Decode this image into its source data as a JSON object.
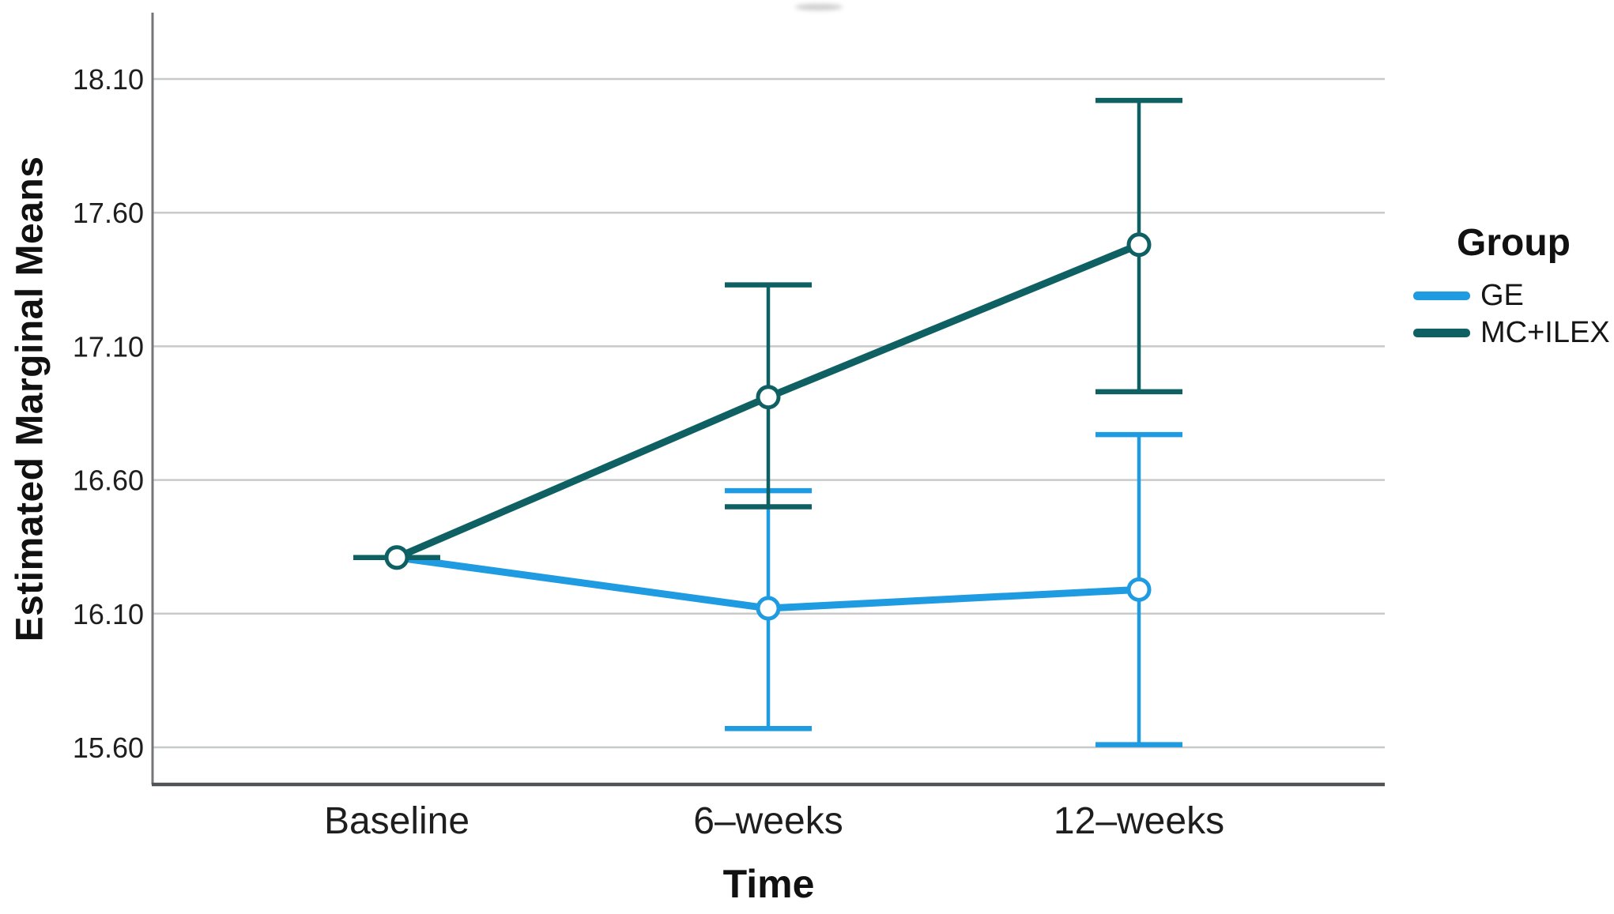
{
  "chart_data": {
    "type": "line",
    "title": "",
    "ylabel": "Estimated Marginal Means",
    "xlabel": "Time",
    "categories": [
      "Baseline",
      "6–weeks",
      "12–weeks"
    ],
    "yticks": [
      18.1,
      17.6,
      17.1,
      16.6,
      16.1,
      15.6
    ],
    "ylim": [
      15.46,
      18.35
    ],
    "grid": true,
    "marker": "open-circle",
    "legend": {
      "title": "Group",
      "position": "right"
    },
    "series": [
      {
        "name": "GE",
        "color": "#1E9BE1",
        "values": [
          16.31,
          16.12,
          16.19
        ],
        "ci_low": [
          16.31,
          15.67,
          15.61
        ],
        "ci_high": [
          16.31,
          16.56,
          16.77
        ]
      },
      {
        "name": "MC+ILEX",
        "color": "#0E6063",
        "values": [
          16.31,
          16.91,
          17.48
        ],
        "ci_low": [
          16.31,
          16.5,
          16.93
        ],
        "ci_high": [
          16.31,
          17.33,
          18.02
        ]
      }
    ]
  },
  "colors": {
    "gridline": "#C8C9CA",
    "axis_line": "#75767A",
    "bottom_axis_line": "#515255",
    "tick_text": "#1E1E1E",
    "title_text": "#111111"
  }
}
